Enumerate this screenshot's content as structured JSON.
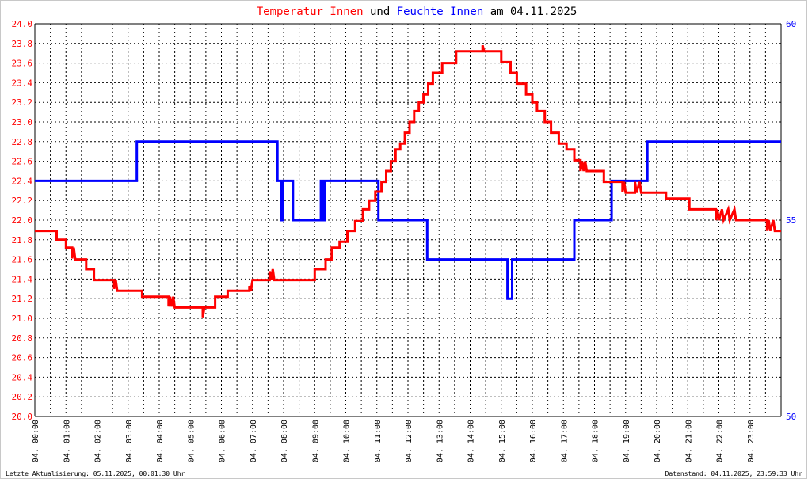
{
  "title": {
    "part1": "Temperatur Innen",
    "part2": " und ",
    "part3": "Feuchte Innen",
    "part4": " am 04.11.2025"
  },
  "footer": {
    "left": "Letzte Aktualisierung: 05.11.2025, 00:01:30 Uhr",
    "right": "Datenstand: 04.11.2025, 23:59:33 Uhr"
  },
  "colors": {
    "temperature": "#ff0000",
    "humidity": "#0000ff",
    "title_text": "#000000",
    "grid": "#000000"
  },
  "chart_data": {
    "type": "line",
    "grid": true,
    "legend": "none",
    "x_unit": "hours",
    "xlim": [
      0,
      24
    ],
    "x_tick_labels": [
      "04. 00:00",
      "04. 01:00",
      "04. 02:00",
      "04. 03:00",
      "04. 04:00",
      "04. 05:00",
      "04. 06:00",
      "04. 07:00",
      "04. 08:00",
      "04. 09:00",
      "04. 10:00",
      "04. 11:00",
      "04. 12:00",
      "04. 13:00",
      "04. 14:00",
      "04. 15:00",
      "04. 16:00",
      "04. 17:00",
      "04. 18:00",
      "04. 19:00",
      "04. 20:00",
      "04. 21:00",
      "04. 22:00",
      "04. 23:00"
    ],
    "y_left": {
      "lim": [
        20.0,
        24.0
      ],
      "ticks": [
        "20.0",
        "20.2",
        "20.4",
        "20.6",
        "20.8",
        "21.0",
        "21.2",
        "21.4",
        "21.6",
        "21.8",
        "22.0",
        "22.2",
        "22.4",
        "22.6",
        "22.8",
        "23.0",
        "23.2",
        "23.4",
        "23.6",
        "23.8",
        "24.0"
      ]
    },
    "y_right": {
      "lim": [
        50,
        60
      ],
      "ticks": [
        "50",
        "55",
        "60"
      ]
    },
    "series": [
      {
        "name": "Temperatur Innen",
        "axis": "left",
        "points": [
          [
            0,
            21.89
          ],
          [
            0.7,
            21.89
          ],
          [
            0.7,
            21.8
          ],
          [
            1.0,
            21.8
          ],
          [
            1.0,
            21.72
          ],
          [
            1.2,
            21.72
          ],
          [
            1.2,
            21.61
          ],
          [
            1.25,
            21.72
          ],
          [
            1.3,
            21.6
          ],
          [
            1.65,
            21.6
          ],
          [
            1.65,
            21.5
          ],
          [
            1.9,
            21.5
          ],
          [
            1.9,
            21.39
          ],
          [
            2.55,
            21.39
          ],
          [
            2.55,
            21.3
          ],
          [
            2.6,
            21.39
          ],
          [
            2.65,
            21.28
          ],
          [
            3.45,
            21.28
          ],
          [
            3.45,
            21.22
          ],
          [
            4.3,
            21.22
          ],
          [
            4.3,
            21.12
          ],
          [
            4.35,
            21.22
          ],
          [
            4.4,
            21.12
          ],
          [
            4.45,
            21.22
          ],
          [
            4.5,
            21.11
          ],
          [
            5.4,
            21.11
          ],
          [
            5.4,
            21.01
          ],
          [
            5.45,
            21.11
          ],
          [
            5.8,
            21.11
          ],
          [
            5.8,
            21.22
          ],
          [
            6.2,
            21.22
          ],
          [
            6.2,
            21.28
          ],
          [
            6.9,
            21.28
          ],
          [
            6.9,
            21.33
          ],
          [
            6.95,
            21.28
          ],
          [
            7.0,
            21.39
          ],
          [
            7.55,
            21.39
          ],
          [
            7.55,
            21.48
          ],
          [
            7.6,
            21.39
          ],
          [
            7.65,
            21.5
          ],
          [
            7.7,
            21.39
          ],
          [
            8.0,
            21.39
          ],
          [
            9.0,
            21.39
          ],
          [
            9.0,
            21.5
          ],
          [
            9.35,
            21.5
          ],
          [
            9.35,
            21.6
          ],
          [
            9.55,
            21.6
          ],
          [
            9.55,
            21.72
          ],
          [
            9.8,
            21.72
          ],
          [
            9.8,
            21.78
          ],
          [
            10.05,
            21.78
          ],
          [
            10.05,
            21.89
          ],
          [
            10.3,
            21.89
          ],
          [
            10.3,
            21.99
          ],
          [
            10.55,
            21.99
          ],
          [
            10.55,
            22.11
          ],
          [
            10.75,
            22.11
          ],
          [
            10.75,
            22.2
          ],
          [
            10.95,
            22.2
          ],
          [
            10.95,
            22.29
          ],
          [
            11.15,
            22.29
          ],
          [
            11.15,
            22.39
          ],
          [
            11.3,
            22.39
          ],
          [
            11.3,
            22.5
          ],
          [
            11.45,
            22.5
          ],
          [
            11.45,
            22.6
          ],
          [
            11.6,
            22.6
          ],
          [
            11.6,
            22.72
          ],
          [
            11.75,
            22.72
          ],
          [
            11.75,
            22.78
          ],
          [
            11.9,
            22.78
          ],
          [
            11.9,
            22.89
          ],
          [
            12.05,
            22.89
          ],
          [
            12.05,
            23.0
          ],
          [
            12.2,
            23.0
          ],
          [
            12.2,
            23.11
          ],
          [
            12.35,
            23.11
          ],
          [
            12.35,
            23.2
          ],
          [
            12.5,
            23.2
          ],
          [
            12.5,
            23.28
          ],
          [
            12.65,
            23.28
          ],
          [
            12.65,
            23.39
          ],
          [
            12.8,
            23.39
          ],
          [
            12.8,
            23.5
          ],
          [
            13.1,
            23.5
          ],
          [
            13.1,
            23.6
          ],
          [
            13.55,
            23.6
          ],
          [
            13.55,
            23.72
          ],
          [
            14.4,
            23.72
          ],
          [
            14.4,
            23.78
          ],
          [
            14.45,
            23.72
          ],
          [
            15.0,
            23.72
          ],
          [
            15.0,
            23.61
          ],
          [
            15.3,
            23.61
          ],
          [
            15.3,
            23.5
          ],
          [
            15.5,
            23.5
          ],
          [
            15.5,
            23.39
          ],
          [
            15.8,
            23.39
          ],
          [
            15.8,
            23.28
          ],
          [
            16.0,
            23.28
          ],
          [
            16.0,
            23.2
          ],
          [
            16.15,
            23.2
          ],
          [
            16.15,
            23.11
          ],
          [
            16.4,
            23.11
          ],
          [
            16.4,
            23.0
          ],
          [
            16.6,
            23.0
          ],
          [
            16.6,
            22.89
          ],
          [
            16.85,
            22.89
          ],
          [
            16.85,
            22.78
          ],
          [
            17.1,
            22.78
          ],
          [
            17.1,
            22.72
          ],
          [
            17.35,
            22.72
          ],
          [
            17.35,
            22.61
          ],
          [
            17.55,
            22.61
          ],
          [
            17.55,
            22.5
          ],
          [
            17.6,
            22.6
          ],
          [
            17.65,
            22.5
          ],
          [
            17.7,
            22.6
          ],
          [
            17.75,
            22.5
          ],
          [
            18.3,
            22.5
          ],
          [
            18.3,
            22.39
          ],
          [
            18.9,
            22.39
          ],
          [
            18.9,
            22.29
          ],
          [
            18.95,
            22.39
          ],
          [
            19.0,
            22.28
          ],
          [
            19.3,
            22.28
          ],
          [
            19.3,
            22.39
          ],
          [
            19.35,
            22.28
          ],
          [
            19.45,
            22.39
          ],
          [
            19.5,
            22.28
          ],
          [
            20.3,
            22.28
          ],
          [
            20.3,
            22.22
          ],
          [
            21.05,
            22.22
          ],
          [
            21.05,
            22.11
          ],
          [
            21.9,
            22.11
          ],
          [
            21.9,
            22.0
          ],
          [
            21.95,
            22.11
          ],
          [
            22.0,
            22.0
          ],
          [
            22.1,
            22.11
          ],
          [
            22.15,
            22.0
          ],
          [
            22.3,
            22.11
          ],
          [
            22.35,
            22.0
          ],
          [
            22.5,
            22.11
          ],
          [
            22.55,
            22.0
          ],
          [
            23.55,
            22.0
          ],
          [
            23.55,
            21.89
          ],
          [
            23.6,
            22.0
          ],
          [
            23.65,
            21.89
          ],
          [
            23.75,
            22.0
          ],
          [
            23.8,
            21.89
          ],
          [
            24,
            21.89
          ]
        ]
      },
      {
        "name": "Feuchte Innen",
        "axis": "right",
        "points": [
          [
            0,
            56.0
          ],
          [
            3.28,
            56.0
          ],
          [
            3.28,
            57.0
          ],
          [
            7.8,
            57.0
          ],
          [
            7.8,
            56.0
          ],
          [
            7.92,
            56.0
          ],
          [
            7.92,
            55.0
          ],
          [
            7.98,
            55.0
          ],
          [
            7.98,
            56.0
          ],
          [
            8.3,
            56.0
          ],
          [
            8.3,
            55.0
          ],
          [
            9.2,
            55.0
          ],
          [
            9.2,
            56.0
          ],
          [
            9.25,
            56.0
          ],
          [
            9.25,
            55.0
          ],
          [
            9.32,
            55.0
          ],
          [
            9.32,
            56.0
          ],
          [
            11.05,
            56.0
          ],
          [
            11.05,
            55.0
          ],
          [
            12.62,
            55.0
          ],
          [
            12.62,
            54.0
          ],
          [
            15.2,
            54.0
          ],
          [
            15.2,
            53.0
          ],
          [
            15.35,
            53.0
          ],
          [
            15.35,
            54.0
          ],
          [
            17.35,
            54.0
          ],
          [
            17.35,
            55.0
          ],
          [
            18.55,
            55.0
          ],
          [
            18.55,
            56.0
          ],
          [
            19.7,
            56.0
          ],
          [
            19.7,
            57.0
          ],
          [
            24,
            57.0
          ]
        ]
      }
    ]
  }
}
